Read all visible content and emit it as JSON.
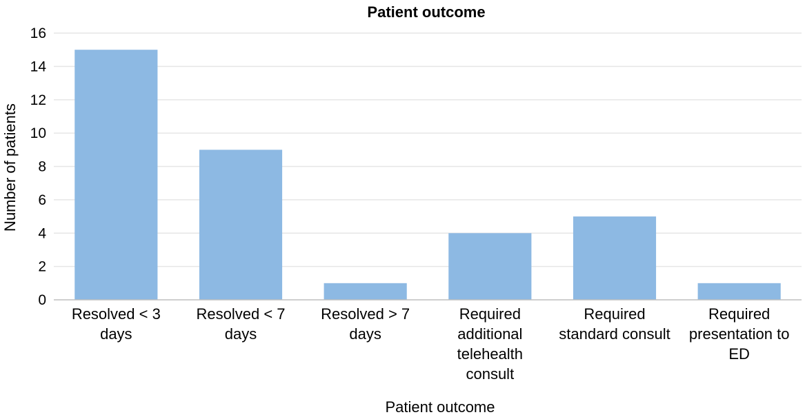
{
  "chart_data": {
    "type": "bar",
    "title": "Patient outcome",
    "xlabel": "Patient outcome",
    "ylabel": "Number of patients",
    "ylim": [
      0,
      16
    ],
    "yticks": [
      0,
      2,
      4,
      6,
      8,
      10,
      12,
      14,
      16
    ],
    "grid": true,
    "categories": [
      "Resolved < 3 days",
      "Resolved < 7 days",
      "Resolved > 7 days",
      "Required additional telehealth consult",
      "Required standard consult",
      "Required presentation to ED"
    ],
    "category_lines": [
      [
        "Resolved < 3",
        "days"
      ],
      [
        "Resolved < 7",
        "days"
      ],
      [
        "Resolved > 7",
        "days"
      ],
      [
        "Required",
        "additional",
        "telehealth",
        "consult"
      ],
      [
        "Required",
        "standard consult"
      ],
      [
        "Required",
        "presentation to",
        "ED"
      ]
    ],
    "values": [
      15,
      9,
      1,
      4,
      5,
      1
    ],
    "bar_color": "#8db9e3"
  }
}
